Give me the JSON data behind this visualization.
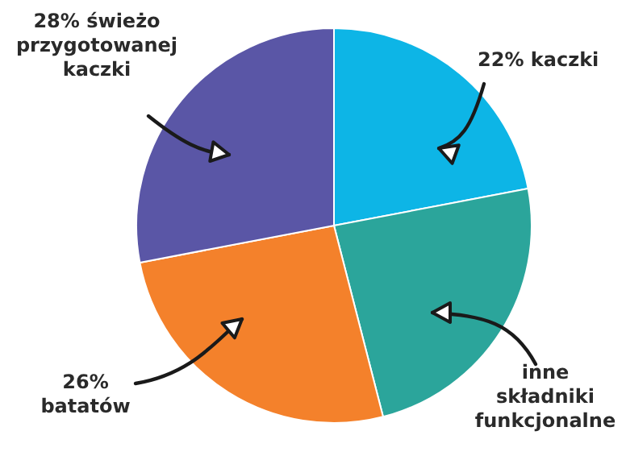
{
  "chart_data": {
    "type": "pie",
    "categories": [
      "22% kaczki",
      "inne składniki funkcjonalne",
      "26% batatów",
      "28% świeżo przygotowanej kaczki"
    ],
    "values": [
      22,
      24,
      26,
      28
    ],
    "colors": [
      "#0db5e6",
      "#2ba59b",
      "#f4812b",
      "#5a56a6"
    ],
    "legend": false
  }
}
